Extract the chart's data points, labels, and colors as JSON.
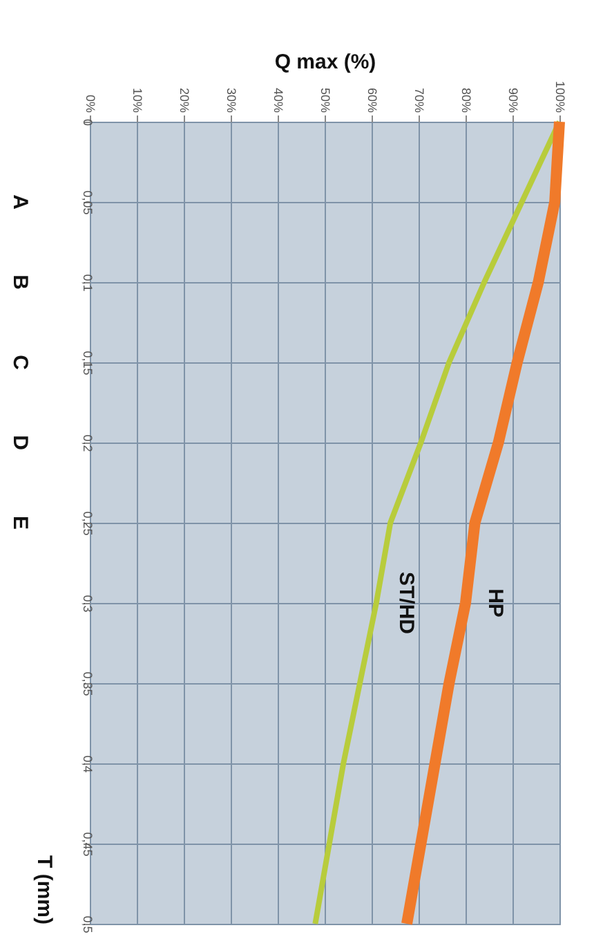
{
  "chart_data": {
    "type": "line",
    "series": [
      {
        "name": "ST/HD",
        "color": "#b8cc3c",
        "x": [
          100,
          92,
          84,
          76.5,
          70.5,
          64,
          61,
          57.5,
          54,
          51,
          48
        ],
        "values": [
          0,
          0.05,
          0.1,
          0.15,
          0.2,
          0.25,
          0.3,
          0.35,
          0.4,
          0.45,
          0.5
        ]
      },
      {
        "name": "HP",
        "color": "#f07a2a",
        "x": [
          100,
          99,
          95.5,
          91,
          87,
          82,
          80,
          76.5,
          73.5,
          70.5,
          67.5
        ],
        "values": [
          0,
          0.05,
          0.1,
          0.15,
          0.2,
          0.25,
          0.3,
          0.35,
          0.4,
          0.45,
          0.5
        ]
      }
    ],
    "xlabel": "Q max (%)",
    "ylabel": "T (mm)",
    "ylim": [
      0.5,
      0
    ],
    "yticks": [
      0,
      {
        "value": 0.05,
        "label": "0,05"
      },
      {
        "value": 0.1,
        "label": "0,1"
      },
      {
        "value": 0.15,
        "label": "0,15"
      },
      {
        "value": 0.2,
        "label": "0,2"
      },
      {
        "value": 0.25,
        "label": "0,25"
      },
      {
        "value": 0.3,
        "label": "0,3"
      },
      {
        "value": 0.35,
        "label": "0,35"
      },
      {
        "value": 0.4,
        "label": "0,4"
      },
      {
        "value": 0.45,
        "label": "0,45"
      },
      {
        "value": 0.5,
        "label": "0,5"
      }
    ],
    "xlim": [
      0,
      100
    ],
    "xticks": [
      {
        "value": 0,
        "label": "0%"
      },
      {
        "value": 10,
        "label": "10%"
      },
      {
        "value": 20,
        "label": "20%"
      },
      {
        "value": 30,
        "label": "30%"
      },
      {
        "value": 40,
        "label": "40%"
      },
      {
        "value": 50,
        "label": "50%"
      },
      {
        "value": 60,
        "label": "60%"
      },
      {
        "value": 70,
        "label": "70%"
      },
      {
        "value": 80,
        "label": "80%"
      },
      {
        "value": 90,
        "label": "90%"
      },
      {
        "value": 100,
        "label": "100%"
      }
    ],
    "annotations": [
      "A",
      "B",
      "C",
      "D",
      "E"
    ],
    "grid": true,
    "marker": "none",
    "line_style": "solid"
  }
}
